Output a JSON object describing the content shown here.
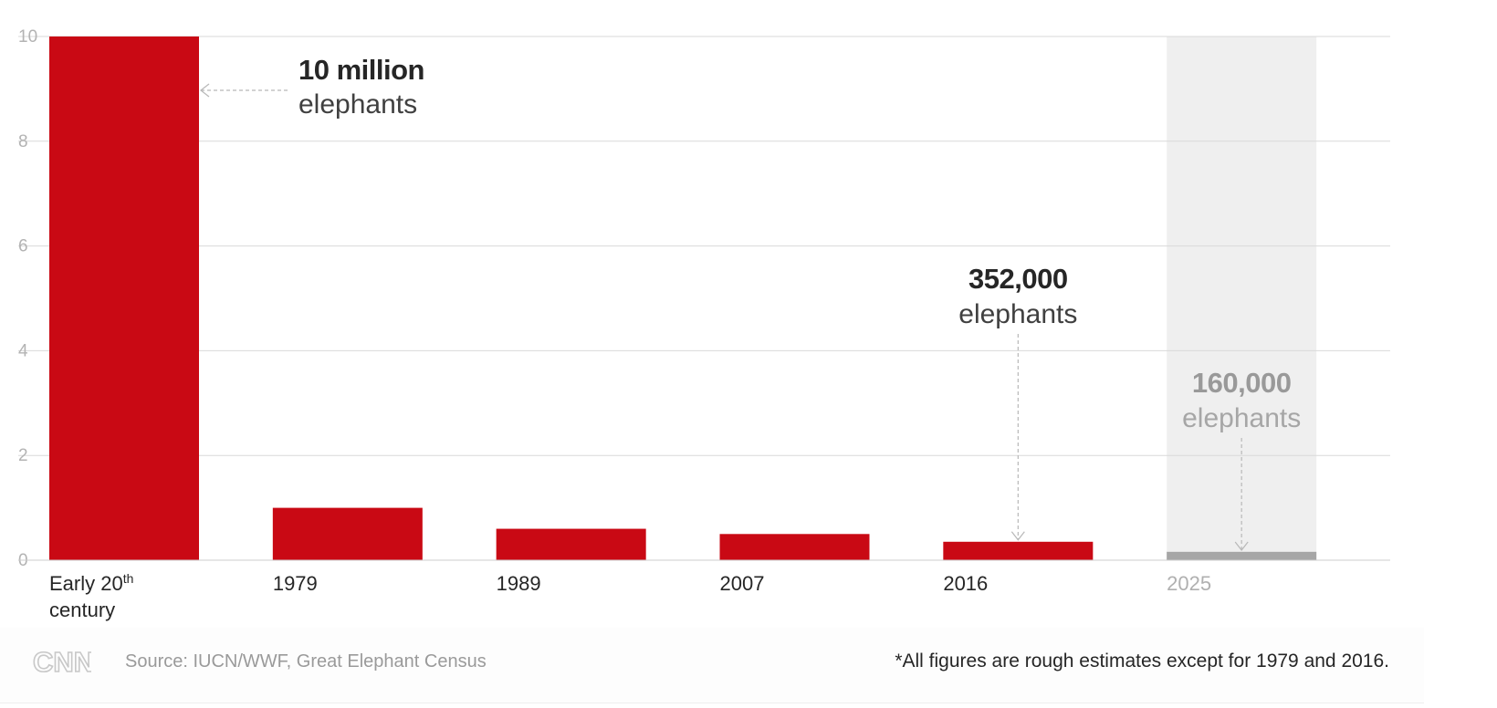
{
  "chart_data": {
    "type": "bar",
    "categories": [
      "Early 20th century",
      "1979",
      "1989",
      "2007",
      "2016",
      "2025"
    ],
    "category_labels": [
      {
        "line1": "Early 20",
        "sup": "th",
        "line2": "century"
      },
      {
        "line1": "1979"
      },
      {
        "line1": "1989"
      },
      {
        "line1": "2007"
      },
      {
        "line1": "2016"
      },
      {
        "line1": "2025"
      }
    ],
    "values": [
      10,
      1.0,
      0.6,
      0.5,
      0.352,
      0.16
    ],
    "projected_index": 5,
    "ylim": [
      0,
      10
    ],
    "yticks": [
      0,
      2,
      4,
      6,
      8,
      10
    ],
    "grid": true,
    "colors": {
      "bar": "#c90914",
      "projected_bar": "#a6a6a6",
      "projected_bg": "#efefef",
      "grid": "#d9d9d9"
    },
    "annotations": [
      {
        "bar_index": 0,
        "value_text": "10 million",
        "unit_text": "elephants",
        "muted": false
      },
      {
        "bar_index": 4,
        "value_text": "352,000",
        "unit_text": "elephants",
        "muted": false
      },
      {
        "bar_index": 5,
        "value_text": "160,000",
        "unit_text": "elephants",
        "muted": true
      }
    ]
  },
  "footer": {
    "logo": "CNN",
    "source": "Source: IUCN/WWF, Great Elephant Census",
    "note": "*All figures are rough estimates except for 1979 and 2016."
  }
}
